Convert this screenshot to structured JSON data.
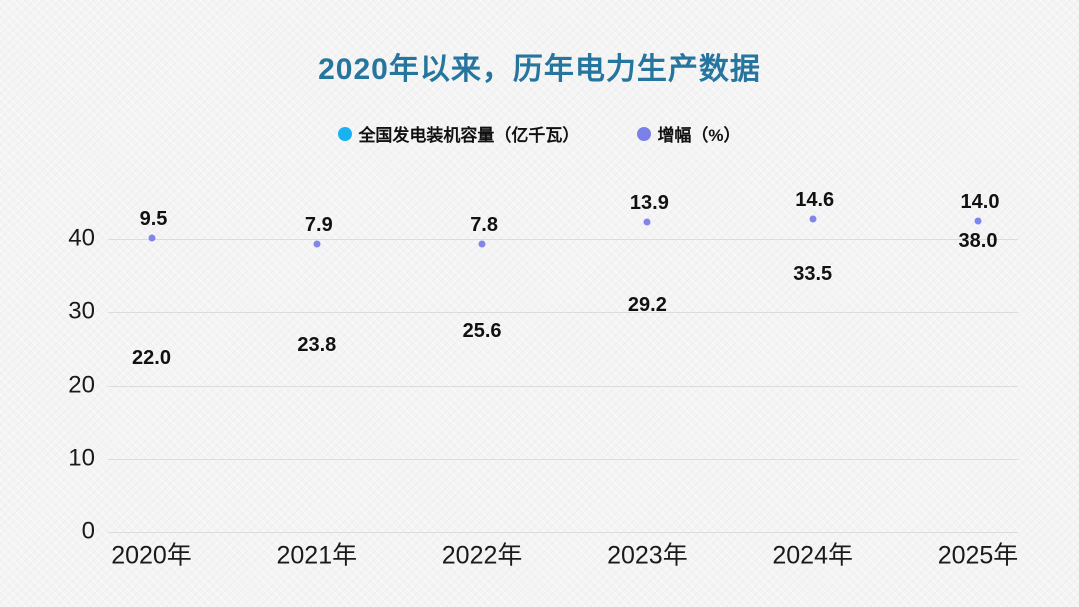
{
  "page": {
    "background_color": "#f4f4f4"
  },
  "header": {
    "title": "2020年以来，历年电力生产数据",
    "title_color": "#26759e"
  },
  "legend": {
    "position": "top",
    "items": [
      {
        "label": "全国发电装机容量（亿千瓦）",
        "color": "#17b2f2"
      },
      {
        "label": "增幅（%）",
        "color": "#7b80e9"
      }
    ]
  },
  "chart_data": {
    "type": "scatter",
    "title": "2020年以来，历年电力生产数据",
    "categories": [
      "2020年",
      "2021年",
      "2022年",
      "2023年",
      "2024年",
      "2025年"
    ],
    "series": [
      {
        "name": "全国发电装机容量（亿千瓦）",
        "axis": "primary",
        "color": "#17b2f2",
        "marker_visible": false,
        "values": [
          22.0,
          23.8,
          25.6,
          29.2,
          33.5,
          38.0
        ],
        "labels": [
          "22.0",
          "23.8",
          "25.6",
          "29.2",
          "33.5",
          "38.0"
        ]
      },
      {
        "name": "增幅（%）",
        "axis": "secondary",
        "color": "#8186ec",
        "marker_visible": true,
        "values": [
          9.5,
          7.9,
          7.8,
          13.9,
          14.6,
          14.0
        ],
        "labels": [
          "9.5",
          "7.9",
          "7.8",
          "13.9",
          "14.6",
          "14.0"
        ]
      }
    ],
    "yaxis": {
      "ticks": [
        0,
        10,
        20,
        30,
        40
      ],
      "tick_labels": [
        "0",
        "10",
        "20",
        "30",
        "40"
      ],
      "min": 0,
      "max": 40
    },
    "grid": true,
    "legend_position": "top",
    "xlabel": "",
    "ylabel": ""
  }
}
